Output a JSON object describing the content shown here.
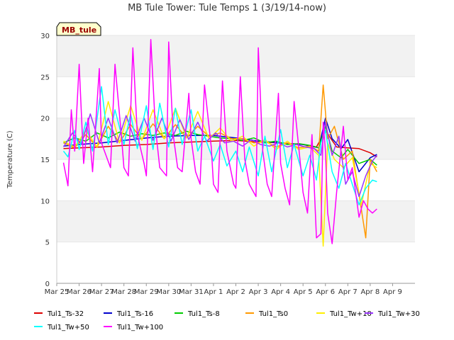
{
  "chart_data": {
    "type": "line",
    "title": "MB Tule Tower: Tule Temps 1 (3/19/14-now)",
    "ylabel": "Temperature (C)",
    "xlabel": "",
    "ylim": [
      0,
      30
    ],
    "yticks": [
      0,
      5,
      10,
      15,
      20,
      25,
      30
    ],
    "xlim": [
      0,
      16
    ],
    "xticks": [
      {
        "x": 0,
        "label": "Mar 25"
      },
      {
        "x": 1,
        "label": "Mar 26"
      },
      {
        "x": 2,
        "label": "Mar 27"
      },
      {
        "x": 3,
        "label": "Mar 28"
      },
      {
        "x": 4,
        "label": "Mar 29"
      },
      {
        "x": 5,
        "label": "Mar 30"
      },
      {
        "x": 6,
        "label": "Mar 31"
      },
      {
        "x": 7,
        "label": "Apr 1"
      },
      {
        "x": 8,
        "label": "Apr 2"
      },
      {
        "x": 9,
        "label": "Apr 3"
      },
      {
        "x": 10,
        "label": "Apr 4"
      },
      {
        "x": 11,
        "label": "Apr 5"
      },
      {
        "x": 12,
        "label": "Apr 6"
      },
      {
        "x": 13,
        "label": "Apr 7"
      },
      {
        "x": 14,
        "label": "Apr 8"
      },
      {
        "x": 15,
        "label": "Apr 9"
      }
    ],
    "grid": "horizontal bands",
    "legend_position": "bottom",
    "tag": "MB_tule",
    "series": [
      {
        "name": "Tul1_Ts-32",
        "color": "#dd0000",
        "x": [
          0.3,
          1,
          2,
          3,
          4,
          5,
          6,
          7,
          8,
          9,
          10,
          11,
          11.6,
          12.0,
          12.5,
          13,
          13.5,
          14,
          14.3
        ],
        "y": [
          16.3,
          16.4,
          16.5,
          16.7,
          16.8,
          17.0,
          17.1,
          17.2,
          17.3,
          17.1,
          17.0,
          16.8,
          16.5,
          18.5,
          16.5,
          16.4,
          16.3,
          15.8,
          15.3
        ]
      },
      {
        "name": "Tul1_Ts-16",
        "color": "#0000cc",
        "x": [
          0.3,
          1,
          2,
          3,
          4,
          5,
          6,
          7,
          8,
          9,
          10,
          11,
          11.7,
          12.0,
          12.3,
          12.7,
          13,
          13.5,
          14,
          14.3
        ],
        "y": [
          16.6,
          16.8,
          17.0,
          17.3,
          17.6,
          17.8,
          17.9,
          17.9,
          17.6,
          17.2,
          17.0,
          16.8,
          16.4,
          20.0,
          17.5,
          16.3,
          17.4,
          13.5,
          15.2,
          15.6
        ]
      },
      {
        "name": "Tul1_Ts-8",
        "color": "#00cc00",
        "x": [
          0.3,
          0.8,
          1.3,
          1.8,
          2.3,
          2.8,
          3.3,
          3.8,
          4.3,
          4.8,
          5.3,
          5.8,
          6.3,
          6.8,
          7.3,
          7.8,
          8.3,
          8.8,
          9.3,
          9.8,
          10.3,
          10.8,
          11.3,
          11.7,
          12.0,
          12.3,
          12.7,
          13,
          13.5,
          14,
          14.3
        ],
        "y": [
          17.0,
          17.6,
          17.2,
          18.2,
          17.6,
          18.3,
          17.8,
          18.1,
          17.9,
          18.2,
          17.9,
          18.4,
          18.0,
          17.8,
          17.6,
          17.5,
          17.3,
          17.6,
          17.0,
          17.2,
          16.8,
          16.9,
          16.7,
          16.4,
          19.0,
          16.0,
          15.2,
          16.2,
          14.5,
          15.0,
          14.3
        ]
      },
      {
        "name": "Tul1_Ts0",
        "color": "#ff9900",
        "x": [
          0.3,
          0.8,
          1.3,
          1.8,
          2.3,
          2.8,
          3.3,
          3.8,
          4.3,
          4.8,
          5.3,
          5.8,
          6.3,
          6.8,
          7.3,
          7.8,
          8.3,
          8.8,
          9.3,
          9.8,
          10.3,
          10.8,
          11.3,
          11.7,
          11.9,
          12.1,
          12.4,
          12.8,
          13.2,
          13.6,
          13.8,
          14,
          14.3
        ],
        "y": [
          17.0,
          16.4,
          18.0,
          16.5,
          19.0,
          17.0,
          19.2,
          17.4,
          19.3,
          17.5,
          19.2,
          17.6,
          19.0,
          17.8,
          18.2,
          17.5,
          17.5,
          17.0,
          17.2,
          16.5,
          17.0,
          16.4,
          16.6,
          16.0,
          24.0,
          17.5,
          19.0,
          15.0,
          16.0,
          9.0,
          5.5,
          15.0,
          13.5
        ]
      },
      {
        "name": "Tul1_Tw+10",
        "color": "#ffee00",
        "x": [
          0.3,
          0.8,
          1.3,
          1.8,
          2.3,
          2.8,
          3.3,
          3.8,
          4.3,
          4.8,
          5.3,
          5.8,
          6.3,
          6.8,
          7.3,
          7.8,
          8.3,
          8.8,
          9.3,
          9.8,
          10.3,
          10.8,
          11.3,
          11.7,
          11.9,
          12.1,
          12.4,
          12.8,
          13.2,
          13.6,
          14,
          14.3
        ],
        "y": [
          17.2,
          16.5,
          18.5,
          16.5,
          22.0,
          17.0,
          21.5,
          17.3,
          21.0,
          17.5,
          21.2,
          17.6,
          20.8,
          17.5,
          18.8,
          17.2,
          17.8,
          16.6,
          17.4,
          16.2,
          17.2,
          16.2,
          16.5,
          15.5,
          4.5,
          17.0,
          15.0,
          14.0,
          15.2,
          9.5,
          14.5,
          14.0
        ]
      },
      {
        "name": "Tul1_Tw+30",
        "color": "#9933ff",
        "x": [
          0.3,
          0.7,
          1.1,
          1.5,
          1.9,
          2.3,
          2.7,
          3.1,
          3.5,
          3.9,
          4.3,
          4.7,
          5.1,
          5.5,
          5.9,
          6.3,
          6.7,
          7.1,
          7.5,
          7.9,
          8.3,
          8.7,
          9.1,
          9.5,
          9.9,
          10.3,
          10.7,
          11.1,
          11.5,
          11.8,
          12.0,
          12.3,
          12.6,
          12.9,
          13.2,
          13.5,
          13.8,
          14.1,
          14.3
        ],
        "y": [
          16.5,
          18.2,
          16.8,
          20.5,
          17.0,
          20.0,
          17.0,
          20.3,
          17.2,
          20.0,
          17.3,
          20.0,
          17.2,
          19.8,
          17.4,
          19.5,
          17.2,
          18.2,
          17.0,
          17.2,
          16.6,
          17.4,
          16.8,
          16.6,
          17.0,
          16.5,
          16.8,
          16.5,
          16.3,
          15.5,
          19.5,
          15.5,
          17.8,
          12.0,
          13.5,
          10.5,
          13.0,
          14.8,
          15.5
        ]
      },
      {
        "name": "Tul1_Tw+50",
        "color": "#00ffff",
        "x": [
          0.3,
          0.5,
          0.8,
          1.0,
          1.3,
          1.6,
          2.0,
          2.3,
          2.6,
          3.0,
          3.3,
          3.6,
          4.0,
          4.3,
          4.6,
          5.0,
          5.3,
          5.6,
          6.0,
          6.3,
          6.6,
          7.0,
          7.3,
          7.6,
          8.0,
          8.3,
          8.6,
          9.0,
          9.3,
          9.6,
          10.0,
          10.3,
          10.6,
          11.0,
          11.3,
          11.6,
          11.8,
          12.0,
          12.3,
          12.6,
          12.9,
          13.2,
          13.5,
          13.8,
          14.1,
          14.3
        ],
        "y": [
          16.0,
          15.3,
          18.5,
          16.2,
          19.5,
          16.0,
          23.8,
          16.8,
          21.0,
          16.8,
          20.5,
          16.3,
          21.5,
          16.2,
          21.8,
          16.5,
          21.2,
          16.8,
          21.0,
          16.0,
          17.8,
          14.8,
          16.8,
          14.2,
          16.0,
          13.5,
          16.5,
          13.0,
          17.8,
          13.5,
          18.6,
          14.0,
          16.8,
          13.0,
          15.5,
          12.5,
          17.0,
          18.5,
          13.5,
          11.5,
          14.5,
          12.0,
          9.5,
          11.5,
          12.5,
          12.3
        ]
      },
      {
        "name": "Tul1_Tw+100",
        "color": "#ff00ff",
        "x": [
          0.3,
          0.5,
          0.65,
          0.8,
          1.0,
          1.2,
          1.4,
          1.6,
          1.9,
          2.0,
          2.2,
          2.4,
          2.6,
          2.9,
          3.0,
          3.2,
          3.4,
          3.6,
          3.9,
          4.0,
          4.2,
          4.4,
          4.6,
          4.9,
          5.0,
          5.2,
          5.4,
          5.6,
          5.9,
          6.0,
          6.2,
          6.4,
          6.6,
          6.9,
          7.0,
          7.2,
          7.4,
          7.6,
          7.9,
          8.0,
          8.2,
          8.4,
          8.6,
          8.9,
          9.0,
          9.2,
          9.4,
          9.6,
          9.9,
          10.0,
          10.2,
          10.4,
          10.6,
          10.9,
          11.0,
          11.2,
          11.4,
          11.6,
          11.8,
          11.9,
          12.0,
          12.1,
          12.3,
          12.5,
          12.8,
          13.0,
          13.2,
          13.5,
          13.7,
          13.9,
          14.1,
          14.3
        ],
        "y": [
          14.6,
          11.8,
          21.0,
          16.0,
          26.5,
          14.5,
          20.0,
          13.5,
          26.0,
          17.0,
          15.5,
          14.0,
          26.5,
          17.5,
          14.0,
          13.0,
          28.5,
          18.0,
          14.5,
          13.0,
          29.5,
          19.0,
          14.0,
          13.0,
          29.2,
          18.0,
          14.0,
          13.5,
          23.0,
          17.5,
          13.5,
          12.0,
          24.0,
          16.5,
          12.0,
          11.0,
          24.5,
          16.0,
          12.0,
          11.5,
          25.0,
          15.0,
          12.0,
          10.5,
          28.5,
          16.0,
          12.0,
          10.5,
          23.0,
          14.5,
          11.5,
          9.5,
          22.0,
          14.0,
          11.0,
          8.5,
          18.0,
          5.5,
          6.0,
          19.5,
          16.0,
          8.5,
          4.8,
          11.0,
          19.0,
          12.5,
          14.0,
          8.0,
          10.0,
          9.0,
          8.5,
          9.0
        ]
      }
    ]
  }
}
